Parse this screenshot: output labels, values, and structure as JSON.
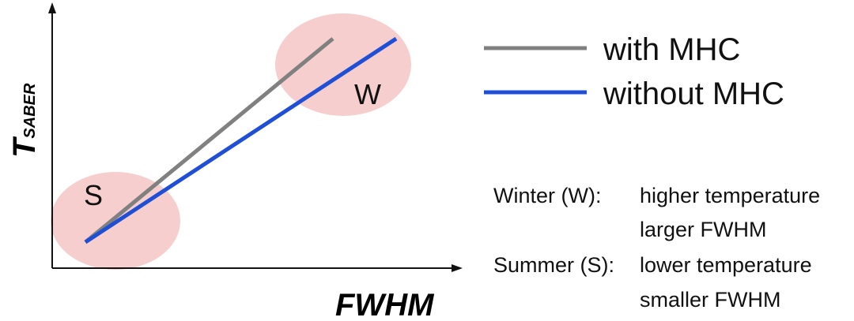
{
  "axes": {
    "x_label": "FWHM",
    "y_label_main": "T",
    "y_label_sub": "SABER"
  },
  "regions": [
    {
      "key": "summer",
      "label": "S",
      "color": "#f5c6c6"
    },
    {
      "key": "winter",
      "label": "W",
      "color": "#f5c6c6"
    }
  ],
  "lines": [
    {
      "key": "with_mhc",
      "label": "with MHC",
      "color": "#808080"
    },
    {
      "key": "without_mhc",
      "label": "without MHC",
      "color": "#1f4fd6"
    }
  ],
  "notes": {
    "winter_label": "Winter (W):",
    "winter_line1": "higher temperature",
    "winter_line2": "larger FWHM",
    "summer_label": "Summer (S):",
    "summer_line1": "lower temperature",
    "summer_line2": "smaller FWHM"
  }
}
